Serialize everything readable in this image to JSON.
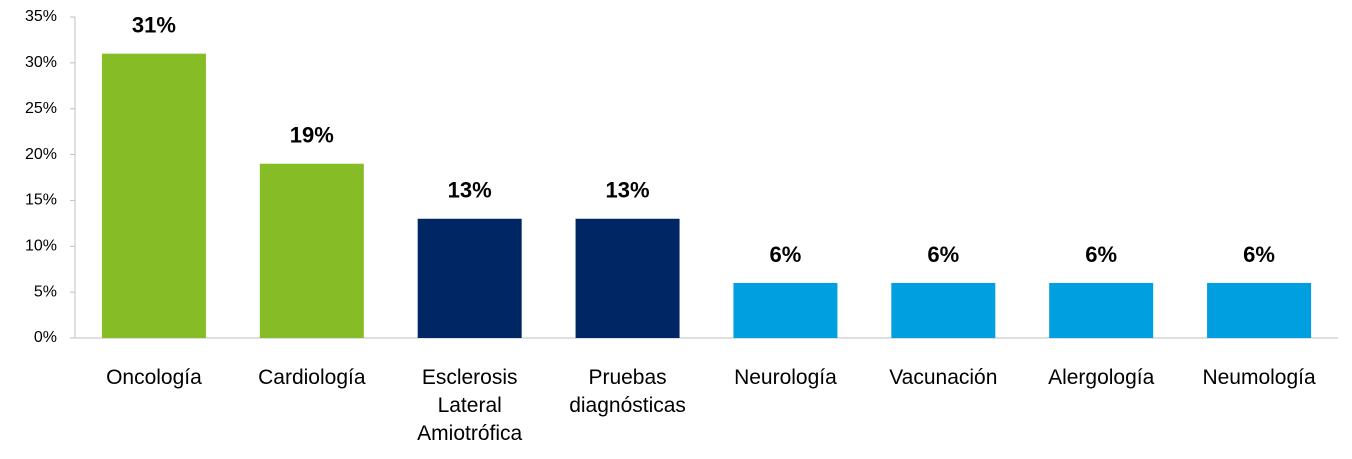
{
  "chart_data": {
    "type": "bar",
    "categories": [
      "Oncología",
      "Cardiología",
      "Esclerosis Lateral Amiotrófica",
      "Pruebas diagnósticas",
      "Neurología",
      "Vacunación",
      "Alergología",
      "Neumología"
    ],
    "values": [
      31,
      19,
      13,
      13,
      6,
      6,
      6,
      6
    ],
    "value_labels": [
      "31%",
      "19%",
      "13%",
      "13%",
      "6%",
      "6%",
      "6%",
      "6%"
    ],
    "colors": [
      "#86bc25",
      "#86bc25",
      "#002664",
      "#002664",
      "#009fe0",
      "#009fe0",
      "#009fe0",
      "#009fe0"
    ],
    "ylim": [
      0,
      35
    ],
    "yticks": [
      {
        "value": 0,
        "label": "0%"
      },
      {
        "value": 5,
        "label": "5%"
      },
      {
        "value": 10,
        "label": "10%"
      },
      {
        "value": 15,
        "label": "15%"
      },
      {
        "value": 20,
        "label": "20%"
      },
      {
        "value": 25,
        "label": "25%"
      },
      {
        "value": 30,
        "label": "30%"
      },
      {
        "value": 35,
        "label": "35%"
      }
    ],
    "grid": false
  }
}
